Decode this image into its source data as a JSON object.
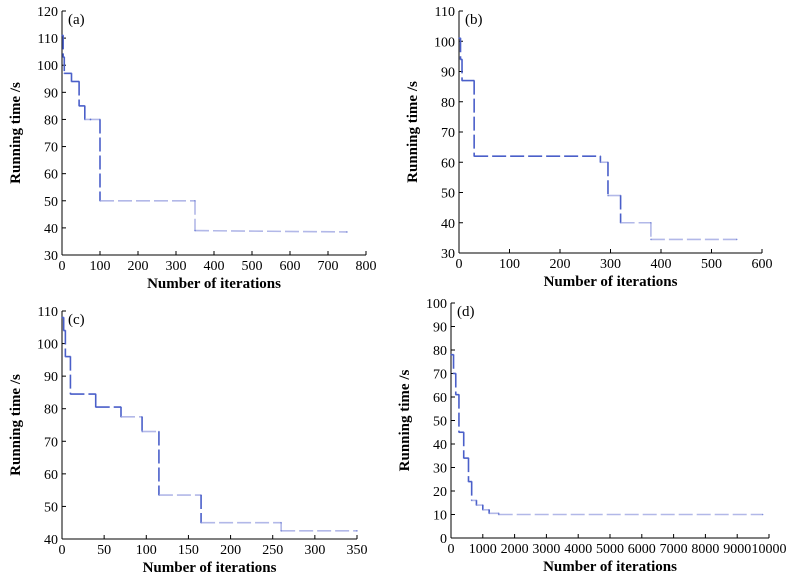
{
  "colors": {
    "line_dark": "#4a5fc9",
    "line_light": "#b2b8e8",
    "axis": "#000000"
  },
  "chart_data": [
    {
      "type": "line",
      "panel": "(a)",
      "xlabel": "Number of iterations",
      "ylabel": "Running time /s",
      "xlim": [
        0,
        800
      ],
      "ylim": [
        30,
        120
      ],
      "xticks": [
        0,
        100,
        200,
        300,
        400,
        500,
        600,
        700,
        800
      ],
      "yticks": [
        30,
        40,
        50,
        60,
        70,
        80,
        90,
        100,
        110,
        120
      ],
      "x": [
        0,
        3,
        3,
        6,
        6,
        25,
        25,
        45,
        45,
        60,
        60,
        75,
        75,
        100,
        100,
        350,
        350,
        750
      ],
      "y": [
        111,
        111,
        103,
        103,
        97,
        97,
        94,
        94,
        85,
        85,
        80,
        80,
        80,
        80,
        50,
        50,
        39,
        38.5
      ]
    },
    {
      "type": "line",
      "panel": "(b)",
      "xlabel": "Number of iterations",
      "ylabel": "Running time /s",
      "xlim": [
        0,
        600
      ],
      "ylim": [
        30,
        110
      ],
      "xticks": [
        0,
        100,
        200,
        300,
        400,
        500,
        600
      ],
      "yticks": [
        30,
        40,
        50,
        60,
        70,
        80,
        90,
        100,
        110
      ],
      "x": [
        0,
        3,
        3,
        6,
        6,
        30,
        30,
        280,
        280,
        295,
        295,
        320,
        320,
        380,
        380,
        550
      ],
      "y": [
        101,
        101,
        94,
        94,
        87,
        87,
        62,
        62,
        60,
        60,
        49,
        49,
        40,
        40,
        34.5,
        34.5
      ]
    },
    {
      "type": "line",
      "panel": "(c)",
      "xlabel": "Number of iterations",
      "ylabel": "Running time /s",
      "xlim": [
        0,
        350
      ],
      "ylim": [
        40,
        110
      ],
      "xticks": [
        0,
        50,
        100,
        150,
        200,
        250,
        300,
        350
      ],
      "yticks": [
        40,
        50,
        60,
        70,
        80,
        90,
        100,
        110
      ],
      "x": [
        0,
        2,
        2,
        4,
        4,
        10,
        10,
        40,
        40,
        70,
        70,
        95,
        95,
        115,
        115,
        165,
        165,
        260,
        260,
        350
      ],
      "y": [
        108,
        108,
        104,
        104,
        96,
        96,
        84.5,
        84.5,
        80.5,
        80.5,
        77.5,
        77.5,
        73,
        73,
        53.5,
        53.5,
        45,
        45,
        42.5,
        42.5
      ]
    },
    {
      "type": "line",
      "panel": "(d)",
      "xlabel": "Number of iterations",
      "ylabel": "Running time /s",
      "xlim": [
        0,
        10000
      ],
      "ylim": [
        0,
        100
      ],
      "xticks": [
        0,
        1000,
        2000,
        3000,
        4000,
        5000,
        6000,
        7000,
        8000,
        9000,
        10000
      ],
      "yticks": [
        0,
        10,
        20,
        30,
        40,
        50,
        60,
        70,
        80,
        90,
        100
      ],
      "x": [
        0,
        80,
        80,
        150,
        150,
        250,
        250,
        400,
        400,
        550,
        550,
        650,
        650,
        800,
        800,
        1000,
        1000,
        1200,
        1200,
        1500,
        1500,
        9800
      ],
      "y": [
        78,
        78,
        70,
        70,
        61,
        61,
        45,
        45,
        34,
        34,
        24,
        24,
        16,
        16,
        14,
        14,
        12,
        12,
        10.5,
        10.5,
        10,
        10
      ]
    }
  ]
}
